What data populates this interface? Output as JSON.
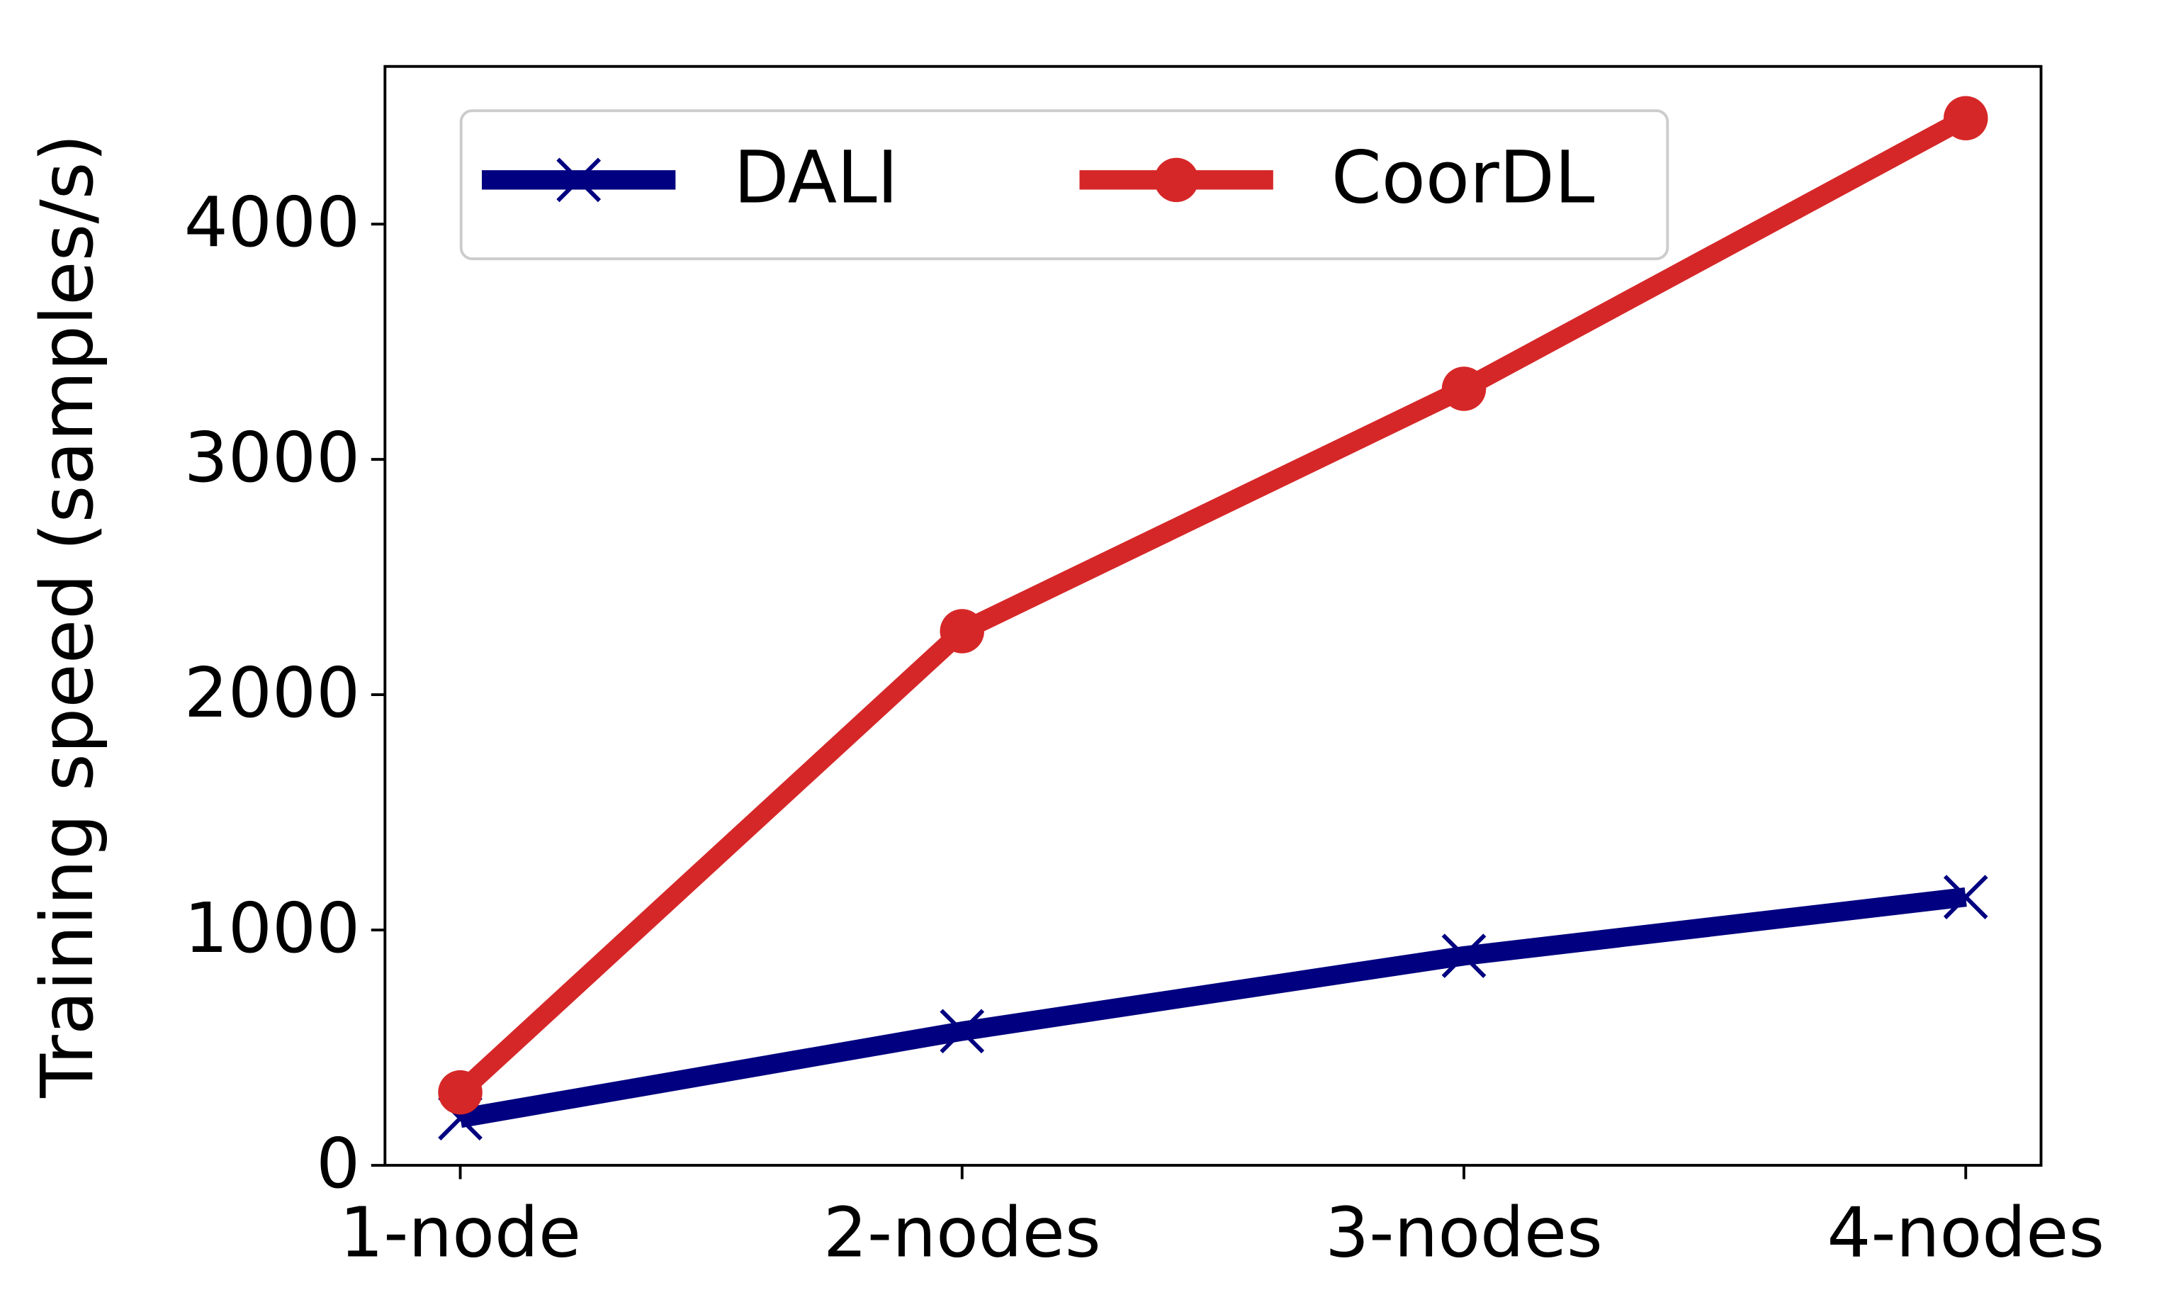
{
  "chart_data": {
    "type": "line",
    "ylabel": "Training speed (samples/s)",
    "categories": [
      "1-node",
      "2-nodes",
      "3-nodes",
      "4-nodes"
    ],
    "series": [
      {
        "name": "DALI",
        "color": "#000080",
        "marker": "x",
        "values": [
          200,
          570,
          890,
          1140
        ]
      },
      {
        "name": "CoorDL",
        "color": "#d62728",
        "marker": "o",
        "values": [
          310,
          2270,
          3300,
          4450
        ]
      }
    ],
    "ylim": [
      0,
      4670
    ],
    "yticks": [
      0,
      1000,
      2000,
      3000,
      4000
    ],
    "legend": "upper-left"
  }
}
